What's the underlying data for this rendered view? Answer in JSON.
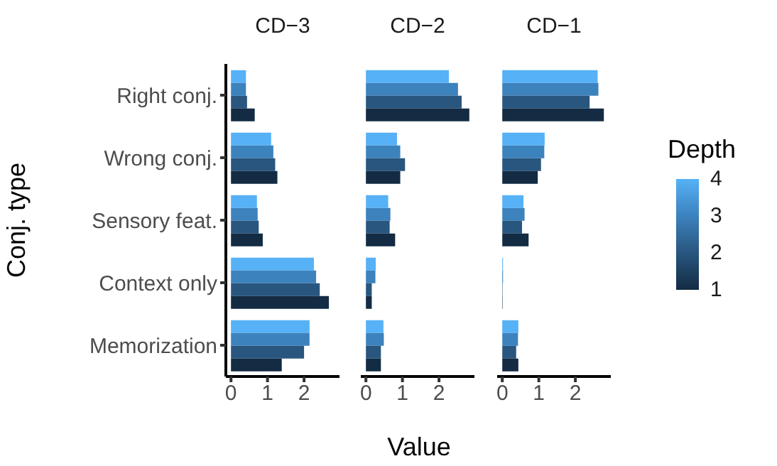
{
  "chart_data": [
    {
      "type": "bar",
      "orientation": "horizontal",
      "title": "CD−3",
      "ylabel": "Conj. type",
      "categories": [
        "Right conj.",
        "Wrong conj.",
        "Sensory feat.",
        "Context only",
        "Memorization"
      ],
      "xlim": [
        -0.14,
        2.97
      ],
      "xticks": [
        0,
        1,
        2
      ],
      "series": [
        {
          "color": "#132b43",
          "values": [
            0.65,
            1.27,
            0.87,
            2.68,
            1.39
          ]
        },
        {
          "color": "#28567f",
          "values": [
            0.44,
            1.21,
            0.76,
            2.43,
            2.0
          ]
        },
        {
          "color": "#3c82bd",
          "values": [
            0.41,
            1.16,
            0.73,
            2.33,
            2.15
          ]
        },
        {
          "color": "#56b1f7",
          "values": [
            0.41,
            1.1,
            0.71,
            2.27,
            2.15
          ]
        }
      ]
    },
    {
      "type": "bar",
      "orientation": "horizontal",
      "title": "CD−2",
      "xlabel": "Value",
      "categories": [
        null,
        null,
        null,
        null,
        null
      ],
      "xlim": [
        -0.14,
        2.97
      ],
      "xticks": [
        0,
        1,
        2
      ],
      "tick_labels": "x",
      "series": [
        {
          "color": "#132b43",
          "values": [
            2.83,
            0.94,
            0.8,
            0.16,
            0.41
          ]
        },
        {
          "color": "#28567f",
          "values": [
            2.62,
            1.07,
            0.65,
            0.16,
            0.41
          ]
        },
        {
          "color": "#3c82bd",
          "values": [
            2.52,
            0.94,
            0.67,
            0.26,
            0.49
          ]
        },
        {
          "color": "#56b1f7",
          "values": [
            2.27,
            0.85,
            0.61,
            0.27,
            0.48
          ]
        }
      ]
    },
    {
      "type": "bar",
      "orientation": "horizontal",
      "title": "CD−1",
      "clabel": "Depth",
      "clim": [
        1,
        4
      ],
      "cticks": [
        1,
        2,
        3,
        4
      ],
      "categories": [
        null,
        null,
        null,
        null,
        null
      ],
      "xlim": [
        -0.14,
        2.97
      ],
      "xticks": [
        0,
        1,
        2
      ],
      "tick_labels": "x",
      "series": [
        {
          "color": "#132b43",
          "values": [
            2.78,
            0.97,
            0.72,
            0.01,
            0.44
          ]
        },
        {
          "color": "#28567f",
          "values": [
            2.39,
            1.06,
            0.54,
            0.01,
            0.38
          ]
        },
        {
          "color": "#3c82bd",
          "values": [
            2.63,
            1.15,
            0.61,
            0.02,
            0.43
          ]
        },
        {
          "color": "#56b1f7",
          "values": [
            2.61,
            1.16,
            0.58,
            0.02,
            0.44
          ]
        }
      ]
    }
  ]
}
